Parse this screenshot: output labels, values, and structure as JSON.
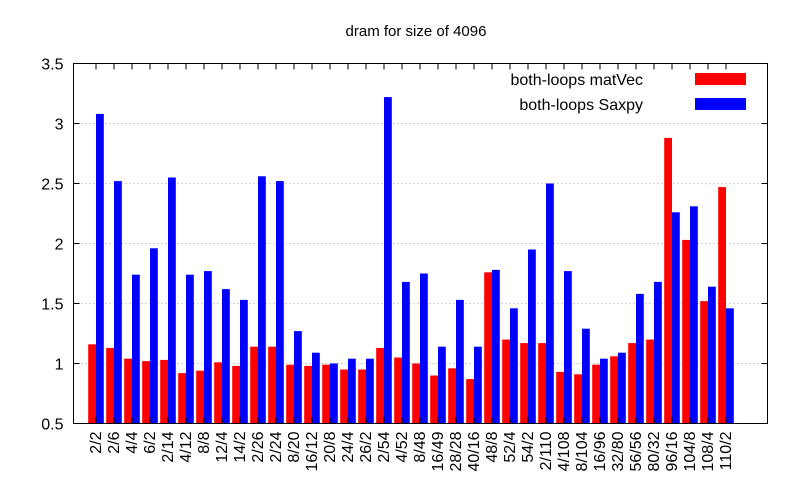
{
  "chart_data": {
    "type": "bar",
    "title": "dram for size of 4096",
    "xlabel": "",
    "ylabel": "",
    "ylim": [
      0.5,
      3.5
    ],
    "yticks": [
      "0.5",
      "1",
      "1.5",
      "2",
      "2.5",
      "3",
      "3.5"
    ],
    "grid": true,
    "legend_position": "top-right",
    "categories": [
      "2/2",
      "2/6",
      "4/4",
      "6/2",
      "2/14",
      "4/12",
      "8/8",
      "12/4",
      "14/2",
      "2/26",
      "2/24",
      "8/20",
      "16/12",
      "20/8",
      "24/4",
      "26/2",
      "2/54",
      "4/52",
      "8/48",
      "16/49",
      "28/28",
      "40/16",
      "48/8",
      "52/4",
      "54/2",
      "2/110",
      "4/108",
      "8/104",
      "16/96",
      "32/80",
      "56/56",
      "80/32",
      "96/16",
      "104/8",
      "108/4",
      "110/2"
    ],
    "series": [
      {
        "name": "both-loops matVec",
        "color": "#ff0000",
        "values": [
          1.16,
          1.13,
          1.04,
          1.02,
          1.03,
          0.92,
          0.94,
          1.01,
          0.98,
          1.14,
          1.14,
          0.99,
          0.98,
          0.99,
          0.95,
          0.95,
          1.13,
          1.05,
          1.0,
          0.9,
          0.96,
          0.87,
          1.76,
          1.2,
          1.17,
          1.17,
          0.93,
          0.91,
          0.99,
          1.06,
          1.17,
          1.2,
          2.88,
          2.03,
          1.52,
          2.47
        ]
      },
      {
        "name": "both-loops Saxpy",
        "color": "#0000ff",
        "values": [
          3.08,
          2.52,
          1.74,
          1.96,
          2.55,
          1.74,
          1.77,
          1.62,
          1.53,
          2.56,
          2.52,
          1.27,
          1.09,
          1.0,
          1.04,
          1.04,
          3.22,
          1.68,
          1.75,
          1.14,
          1.53,
          1.14,
          1.78,
          1.46,
          1.95,
          2.5,
          1.77,
          1.29,
          1.04,
          1.09,
          1.58,
          1.68,
          2.26,
          2.31,
          1.64,
          1.46
        ]
      }
    ]
  }
}
